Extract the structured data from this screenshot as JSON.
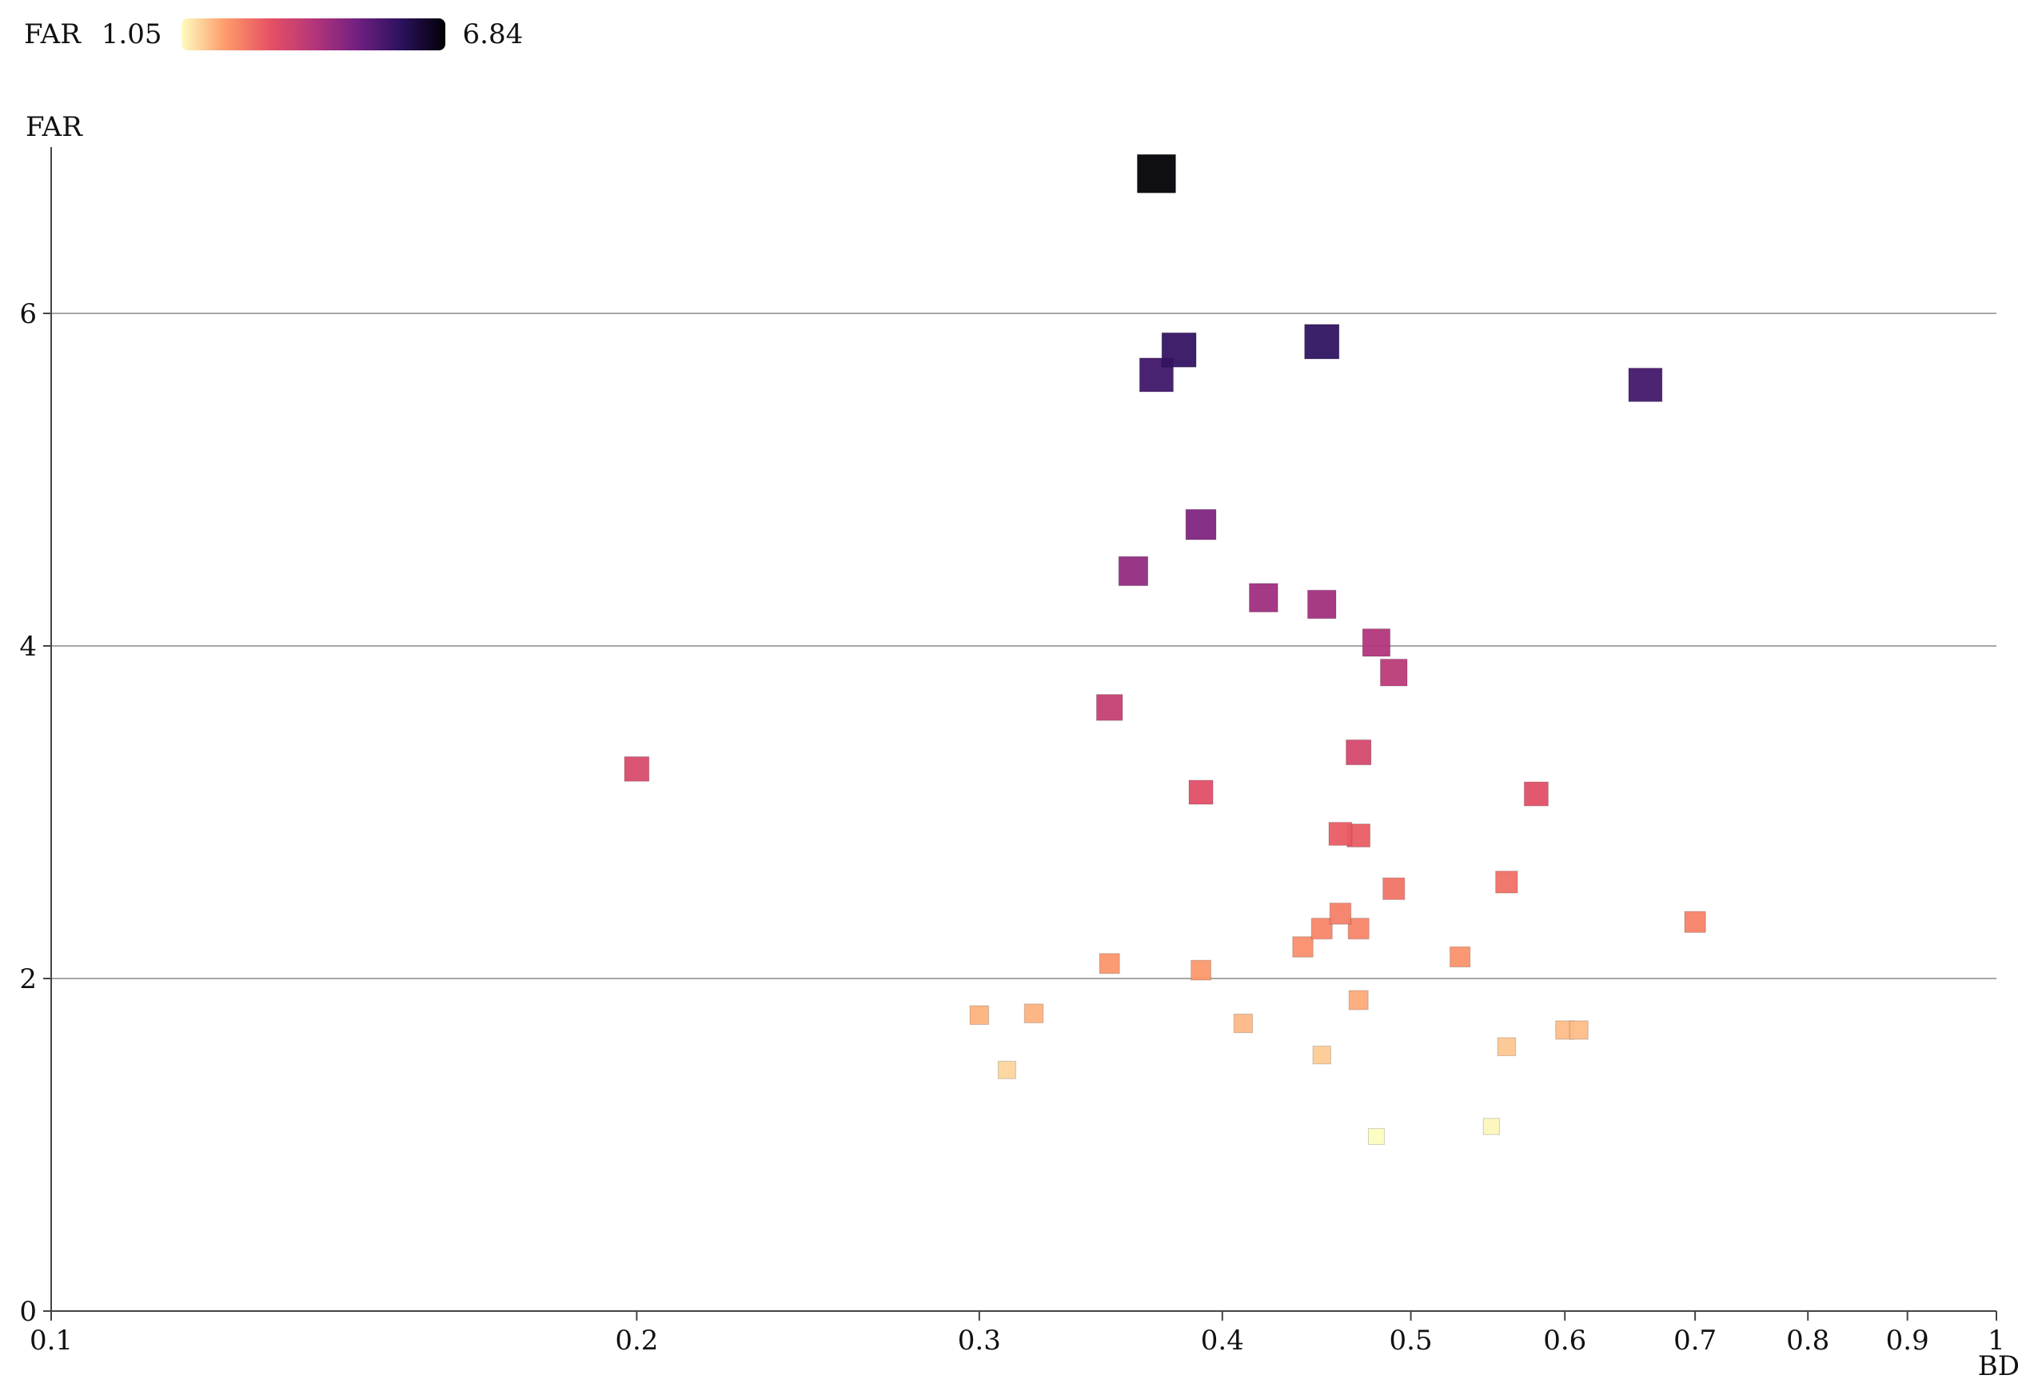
{
  "legend": {
    "label": "FAR",
    "min_label": "1.05",
    "max_label": "6.84",
    "colors": [
      "#fcfdbf",
      "#fd9b6b",
      "#e75263",
      "#b5367a",
      "#712081",
      "#2c115f",
      "#000004"
    ]
  },
  "chart_data": {
    "type": "scatter",
    "title": "",
    "xlabel": "BD",
    "ylabel": "FAR",
    "xscale": "log",
    "xlim": [
      0.1,
      1
    ],
    "ylim": [
      0,
      7
    ],
    "grid": "horizontal",
    "color_by": "FAR",
    "size_by": "FAR",
    "color_range": [
      1.05,
      6.84
    ],
    "x_ticks": [
      {
        "v": 0.1,
        "label": "0.1"
      },
      {
        "v": 0.2,
        "label": "0.2"
      },
      {
        "v": 0.3,
        "label": "0.3"
      },
      {
        "v": 0.4,
        "label": "0.4"
      },
      {
        "v": 0.5,
        "label": "0.5"
      },
      {
        "v": 0.6,
        "label": "0.6"
      },
      {
        "v": 0.7,
        "label": "0.7"
      },
      {
        "v": 0.8,
        "label": "0.8"
      },
      {
        "v": 0.9,
        "label": "0.9"
      },
      {
        "v": 1.0,
        "label": "1"
      }
    ],
    "y_ticks": [
      {
        "v": 0,
        "label": "0"
      },
      {
        "v": 2,
        "label": "2"
      },
      {
        "v": 4,
        "label": "4"
      },
      {
        "v": 6,
        "label": "6"
      }
    ],
    "points": [
      {
        "x": 0.37,
        "y": 6.84
      },
      {
        "x": 0.45,
        "y": 5.83
      },
      {
        "x": 0.38,
        "y": 5.78
      },
      {
        "x": 0.37,
        "y": 5.63
      },
      {
        "x": 0.66,
        "y": 5.57
      },
      {
        "x": 0.39,
        "y": 4.73
      },
      {
        "x": 0.36,
        "y": 4.45
      },
      {
        "x": 0.42,
        "y": 4.29
      },
      {
        "x": 0.45,
        "y": 4.25
      },
      {
        "x": 0.48,
        "y": 4.02
      },
      {
        "x": 0.49,
        "y": 3.84
      },
      {
        "x": 0.35,
        "y": 3.63
      },
      {
        "x": 0.47,
        "y": 3.36
      },
      {
        "x": 0.2,
        "y": 3.26
      },
      {
        "x": 0.39,
        "y": 3.12
      },
      {
        "x": 0.58,
        "y": 3.11
      },
      {
        "x": 0.46,
        "y": 2.87
      },
      {
        "x": 0.47,
        "y": 2.86
      },
      {
        "x": 0.56,
        "y": 2.58
      },
      {
        "x": 0.49,
        "y": 2.54
      },
      {
        "x": 0.46,
        "y": 2.39
      },
      {
        "x": 0.7,
        "y": 2.34
      },
      {
        "x": 0.45,
        "y": 2.3
      },
      {
        "x": 0.47,
        "y": 2.3
      },
      {
        "x": 0.44,
        "y": 2.19
      },
      {
        "x": 0.53,
        "y": 2.13
      },
      {
        "x": 0.35,
        "y": 2.09
      },
      {
        "x": 0.39,
        "y": 2.05
      },
      {
        "x": 0.47,
        "y": 1.87
      },
      {
        "x": 0.32,
        "y": 1.79
      },
      {
        "x": 0.3,
        "y": 1.78
      },
      {
        "x": 0.41,
        "y": 1.73
      },
      {
        "x": 0.6,
        "y": 1.69
      },
      {
        "x": 0.61,
        "y": 1.69
      },
      {
        "x": 0.56,
        "y": 1.59
      },
      {
        "x": 0.45,
        "y": 1.54
      },
      {
        "x": 0.31,
        "y": 1.45
      },
      {
        "x": 0.55,
        "y": 1.11
      },
      {
        "x": 0.48,
        "y": 1.05
      }
    ]
  }
}
